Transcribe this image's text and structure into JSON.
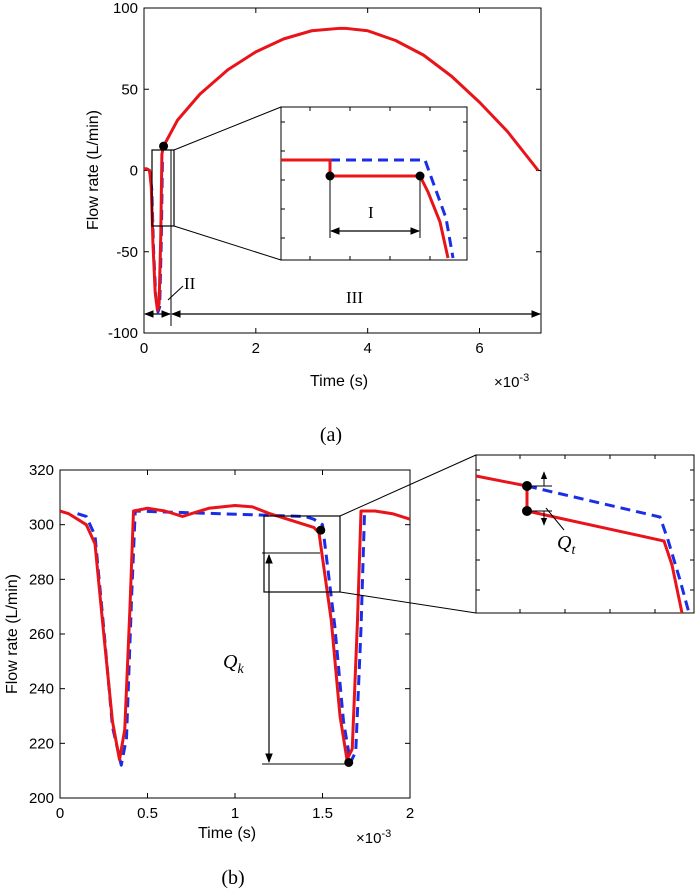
{
  "chart_data": [
    {
      "type": "line",
      "caption": "(a)",
      "xlabel": "Time (s)",
      "x_multiplier": "×10",
      "x_multiplier_exp": "-3",
      "ylabel": "Flow rate (L/min)",
      "xlim": [
        0,
        7.1
      ],
      "ylim": [
        -100,
        100
      ],
      "xticks": [
        "0",
        "2",
        "4",
        "6"
      ],
      "xtick_values": [
        0,
        2,
        4,
        6
      ],
      "yticks": [
        "100",
        "50",
        "0",
        "-50",
        "-100"
      ],
      "ytick_values": [
        100,
        50,
        0,
        -50,
        -100
      ],
      "series": [
        {
          "color": "#e8141a",
          "style": "solid",
          "x": [
            0,
            0.05,
            0.1,
            0.13,
            0.16,
            0.2,
            0.24,
            0.27,
            0.3,
            0.32,
            0.35,
            0.6,
            1.0,
            1.5,
            2.0,
            2.5,
            3.0,
            3.5,
            3.6,
            4.0,
            4.5,
            5.0,
            5.5,
            6.0,
            6.5,
            7.05
          ],
          "y": [
            1,
            1,
            0,
            -10,
            -45,
            -75,
            -86,
            -82,
            -40,
            10,
            15,
            31,
            47,
            62,
            73,
            81,
            86,
            87.5,
            87.5,
            86,
            80,
            71,
            58,
            42,
            24,
            0
          ]
        },
        {
          "color": "#1a2ee8",
          "style": "dashed",
          "x": [
            0,
            0.05,
            0.1,
            0.14,
            0.17,
            0.21,
            0.25,
            0.28,
            0.31,
            0.33
          ],
          "y": [
            1,
            1,
            0,
            -12,
            -48,
            -77,
            -87,
            -84,
            -42,
            8
          ]
        }
      ],
      "annotations": [
        "I",
        "II",
        "III"
      ],
      "markers": [
        {
          "x": 0.35,
          "y": 15
        }
      ]
    },
    {
      "type": "line",
      "caption": "(b)",
      "xlabel": "Time (s)",
      "x_multiplier": "×10",
      "x_multiplier_exp": "-3",
      "ylabel": "Flow rate (L/min)",
      "xlim": [
        0,
        2
      ],
      "ylim": [
        200,
        320
      ],
      "xticks": [
        "0",
        "0.5",
        "1",
        "1.5",
        "2"
      ],
      "xtick_values": [
        0,
        0.5,
        1,
        1.5,
        2
      ],
      "yticks": [
        "320",
        "300",
        "280",
        "260",
        "240",
        "220",
        "200"
      ],
      "ytick_values": [
        320,
        300,
        280,
        260,
        240,
        220,
        200
      ],
      "series": [
        {
          "color": "#e8141a",
          "style": "solid",
          "x": [
            0,
            0.05,
            0.1,
            0.15,
            0.2,
            0.25,
            0.3,
            0.34,
            0.37,
            0.4,
            0.42,
            0.5,
            0.6,
            0.7,
            0.75,
            0.85,
            1.0,
            1.1,
            1.2,
            1.3,
            1.4,
            1.45,
            1.48,
            1.55,
            1.6,
            1.64,
            1.67,
            1.7,
            1.72,
            1.8,
            1.9,
            2.0
          ],
          "y": [
            305,
            304,
            302,
            300,
            293,
            260,
            228,
            214,
            225,
            270,
            305,
            306,
            305,
            303,
            304,
            306,
            307,
            306.5,
            304,
            302,
            300,
            299,
            297,
            265,
            230,
            214,
            218,
            265,
            305,
            305,
            304,
            302
          ]
        },
        {
          "color": "#1a2ee8",
          "style": "dashed",
          "x": [
            0.1,
            0.15,
            0.2,
            0.25,
            0.3,
            0.35,
            0.38,
            0.41,
            0.43,
            1.4,
            1.45,
            1.5,
            1.57,
            1.62,
            1.66,
            1.69,
            1.72,
            1.74
          ],
          "y": [
            304,
            303,
            296,
            262,
            226,
            212,
            222,
            275,
            305,
            303,
            302,
            300,
            263,
            228,
            213,
            217,
            262,
            304
          ]
        }
      ],
      "annotations": [
        "Q",
        "k",
        "Q",
        "t"
      ],
      "markers": [
        {
          "x": 1.49,
          "y": 298
        },
        {
          "x": 1.65,
          "y": 213
        }
      ]
    }
  ]
}
